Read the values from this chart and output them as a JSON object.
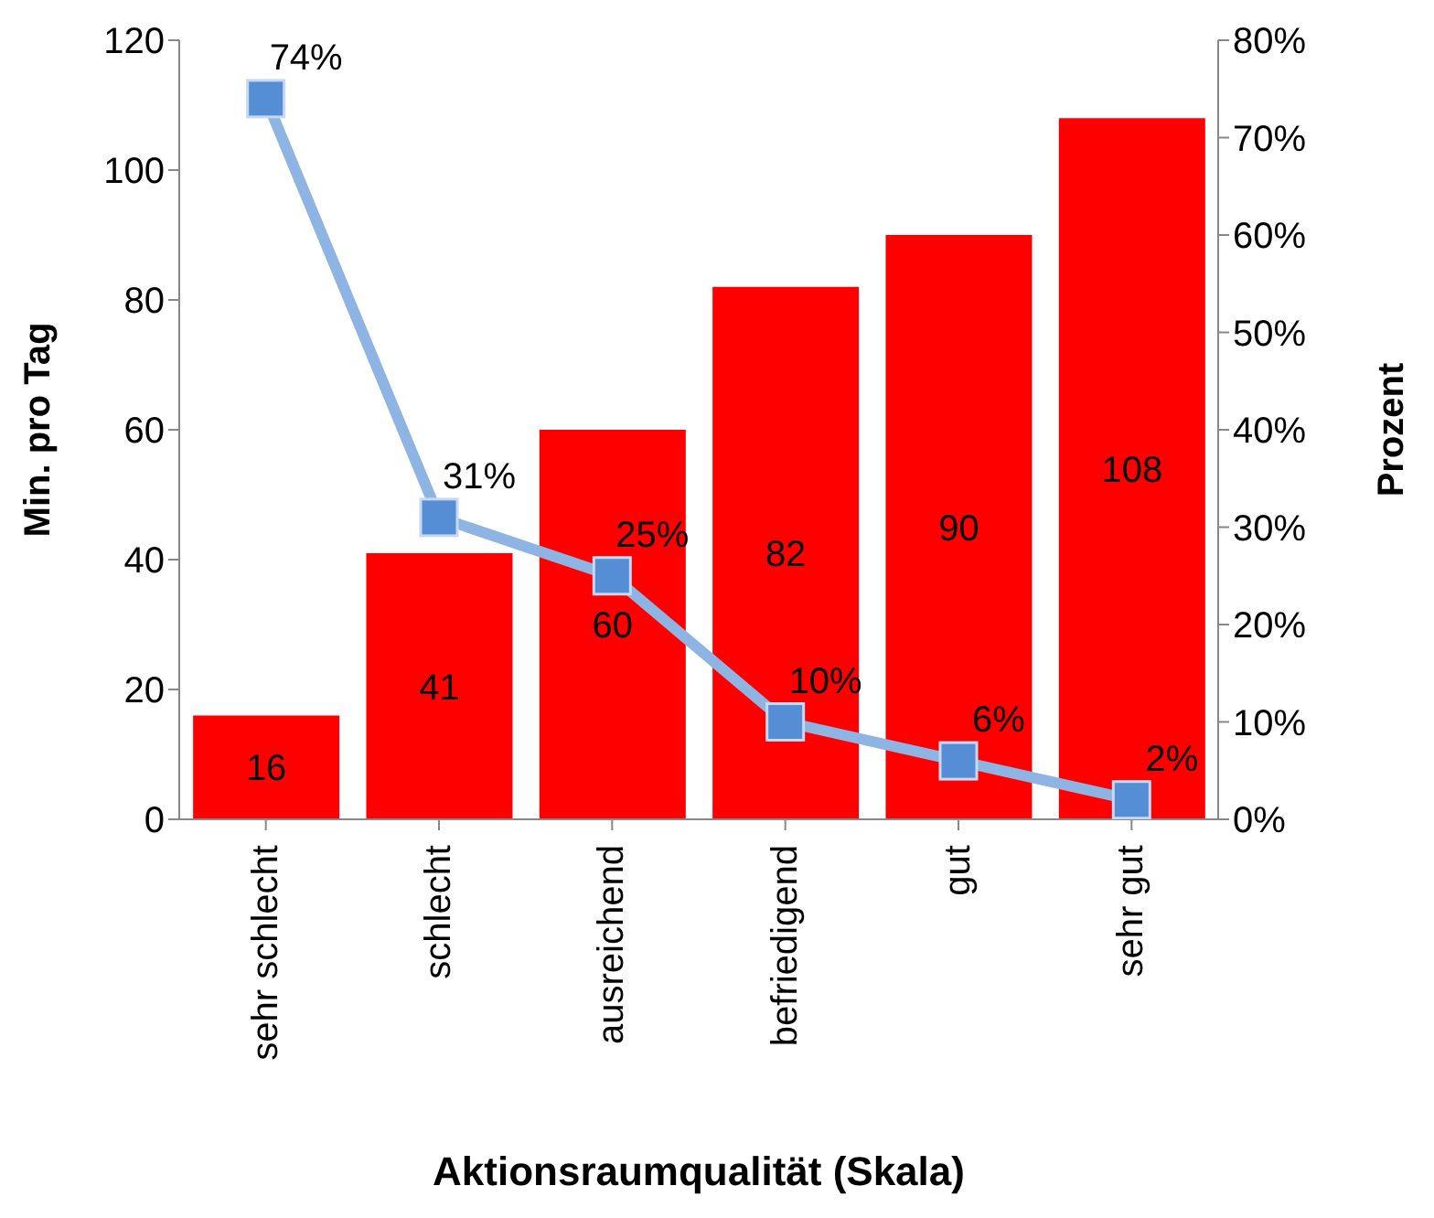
{
  "chart_data": {
    "type": "bar",
    "xlabel": "Aktionsraumqualität (Skala)",
    "ylabel": "Min. pro Tag",
    "y2label": "Prozent",
    "categories": [
      "sehr schlecht",
      "schlecht",
      "ausreichend",
      "befriedigend",
      "gut",
      "sehr gut"
    ],
    "series": [
      {
        "color": "#ff0000",
        "values": [
          16,
          41,
          60,
          82,
          90,
          108
        ],
        "data_labels": true
      },
      {
        "type": "line",
        "axis": "y2",
        "color": "#8db4e2",
        "marker": "square",
        "values": [
          74,
          31,
          25,
          10,
          6,
          2
        ],
        "value_labels": [
          "74%",
          "31%",
          "25%",
          "10%",
          "6%",
          "2%"
        ]
      }
    ],
    "ylim": [
      0,
      120
    ],
    "yticks": [
      0,
      20,
      40,
      60,
      80,
      100,
      120
    ],
    "y2lim": [
      0,
      80
    ],
    "y2ticks": [
      {
        "value": 0,
        "label": "0%"
      },
      {
        "value": 10,
        "label": "10%"
      },
      {
        "value": 20,
        "label": "20%"
      },
      {
        "value": 30,
        "label": "30%"
      },
      {
        "value": 40,
        "label": "40%"
      },
      {
        "value": 50,
        "label": "50%"
      },
      {
        "value": 60,
        "label": "60%"
      },
      {
        "value": 70,
        "label": "70%"
      },
      {
        "value": 80,
        "label": "80%"
      }
    ],
    "grid": false,
    "legend": false
  }
}
